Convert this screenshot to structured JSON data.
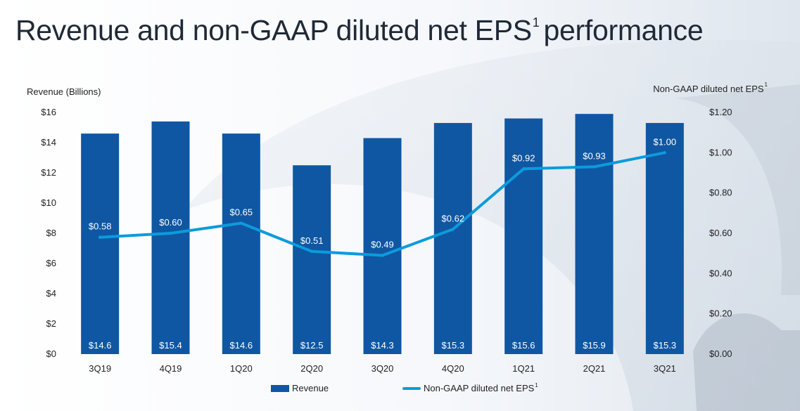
{
  "title": "Revenue and non-GAAP diluted net EPS",
  "title_superscript": "1",
  "title_suffix": "performance",
  "colors": {
    "bar": "#0f57a3",
    "line": "#0c9bdc",
    "bar_label": "#ffffff",
    "text": "#222222"
  },
  "chart_data": {
    "type": "bar",
    "categories": [
      "3Q19",
      "4Q19",
      "1Q20",
      "2Q20",
      "3Q20",
      "4Q20",
      "1Q21",
      "2Q21",
      "3Q21"
    ],
    "series": [
      {
        "name": "Revenue",
        "type": "bar",
        "axis": "left",
        "values": [
          14.6,
          15.4,
          14.6,
          12.5,
          14.3,
          15.3,
          15.6,
          15.9,
          15.3
        ],
        "labels": [
          "$14.6",
          "$15.4",
          "$14.6",
          "$12.5",
          "$14.3",
          "$15.3",
          "$15.6",
          "$15.9",
          "$15.3"
        ]
      },
      {
        "name": "Non-GAAP diluted net EPS",
        "name_superscript": "1",
        "type": "line",
        "axis": "right",
        "values": [
          0.58,
          0.6,
          0.65,
          0.51,
          0.49,
          0.62,
          0.92,
          0.93,
          1.0
        ],
        "labels": [
          "$0.58",
          "$0.60",
          "$0.65",
          "$0.51",
          "$0.49",
          "$0.62",
          "$0.92",
          "$0.93",
          "$1.00"
        ]
      }
    ],
    "y_left": {
      "label": "Revenue (Billions)",
      "min": 0,
      "max": 16,
      "ticks": [
        0,
        2,
        4,
        6,
        8,
        10,
        12,
        14,
        16
      ],
      "tick_labels": [
        "$0",
        "$2",
        "$4",
        "$6",
        "$8",
        "$10",
        "$12",
        "$14",
        "$16"
      ]
    },
    "y_right": {
      "label": "Non-GAAP diluted net EPS",
      "label_superscript": "1",
      "min": 0,
      "max": 1.2,
      "ticks": [
        0,
        0.2,
        0.4,
        0.6,
        0.8,
        1.0,
        1.2
      ],
      "tick_labels": [
        "$0.00",
        "$0.20",
        "$0.40",
        "$0.60",
        "$0.80",
        "$1.00",
        "$1.20"
      ]
    },
    "grid": false,
    "legend": "bottom"
  }
}
